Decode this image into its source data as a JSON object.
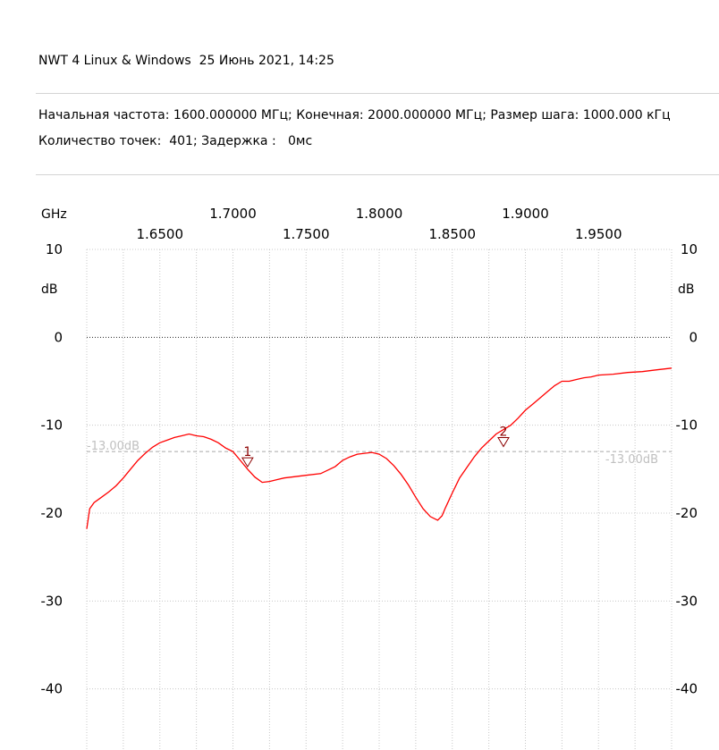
{
  "header": {
    "title": "NWT 4 Linux & Windows  25 Июнь 2021, 14:25",
    "line1": "Начальная частота: 1600.000000 МГц; Конечная: 2000.000000 МГц; Размер шага: 1000.000 кГц",
    "line2": "Количество точек:  401; Задержка :   0мс"
  },
  "chart_data": {
    "type": "line",
    "x_unit": "GHz",
    "y_unit": "dB",
    "xlim": [
      1.6,
      2.0
    ],
    "ylim": [
      -50,
      10
    ],
    "x_ticks_upper": [
      "1.7000",
      "1.8000",
      "1.9000"
    ],
    "x_ticks_lower": [
      "1.6500",
      "1.7500",
      "1.8500",
      "1.9500"
    ],
    "y_ticks": [
      "10",
      "0",
      "-10",
      "-20",
      "-30",
      "-40"
    ],
    "reference_line": {
      "value": -13,
      "label": "-13.00dB",
      "color": "#c0c0c0"
    },
    "zero_line": 0,
    "grid": true,
    "series": [
      {
        "color": "#ff0000",
        "x": [
          1.6,
          1.602,
          1.605,
          1.61,
          1.615,
          1.62,
          1.625,
          1.63,
          1.635,
          1.64,
          1.645,
          1.65,
          1.655,
          1.66,
          1.665,
          1.67,
          1.675,
          1.68,
          1.685,
          1.69,
          1.695,
          1.7,
          1.705,
          1.71,
          1.715,
          1.72,
          1.725,
          1.73,
          1.735,
          1.74,
          1.75,
          1.76,
          1.77,
          1.775,
          1.78,
          1.785,
          1.79,
          1.795,
          1.8,
          1.805,
          1.81,
          1.815,
          1.82,
          1.825,
          1.83,
          1.835,
          1.84,
          1.843,
          1.845,
          1.847,
          1.85,
          1.855,
          1.86,
          1.865,
          1.87,
          1.875,
          1.88,
          1.885,
          1.89,
          1.895,
          1.9,
          1.905,
          1.91,
          1.915,
          1.92,
          1.925,
          1.93,
          1.935,
          1.94,
          1.945,
          1.95,
          1.96,
          1.97,
          1.98,
          1.99,
          2.0
        ],
        "y": [
          -21.8,
          -19.5,
          -18.8,
          -18.2,
          -17.6,
          -16.9,
          -16.0,
          -15.0,
          -14.0,
          -13.2,
          -12.5,
          -12.0,
          -11.7,
          -11.4,
          -11.2,
          -11.0,
          -11.2,
          -11.3,
          -11.6,
          -12.0,
          -12.6,
          -13.0,
          -14.0,
          -15.0,
          -15.9,
          -16.5,
          -16.4,
          -16.2,
          -16.0,
          -15.9,
          -15.7,
          -15.5,
          -14.7,
          -14.0,
          -13.6,
          -13.3,
          -13.2,
          -13.1,
          -13.3,
          -13.8,
          -14.6,
          -15.6,
          -16.8,
          -18.2,
          -19.5,
          -20.4,
          -20.8,
          -20.3,
          -19.5,
          -18.8,
          -17.7,
          -16.0,
          -14.8,
          -13.6,
          -12.6,
          -11.8,
          -11.0,
          -10.5,
          -10.0,
          -9.2,
          -8.3,
          -7.6,
          -6.9,
          -6.2,
          -5.5,
          -5.0,
          -5.0,
          -4.8,
          -4.6,
          -4.5,
          -4.3,
          -4.2,
          -4.0,
          -3.9,
          -3.7,
          -3.5
        ]
      }
    ],
    "markers": [
      {
        "label": "1",
        "x": 1.71,
        "y": -13.5
      },
      {
        "label": "2",
        "x": 1.885,
        "y": -11.2
      }
    ]
  }
}
